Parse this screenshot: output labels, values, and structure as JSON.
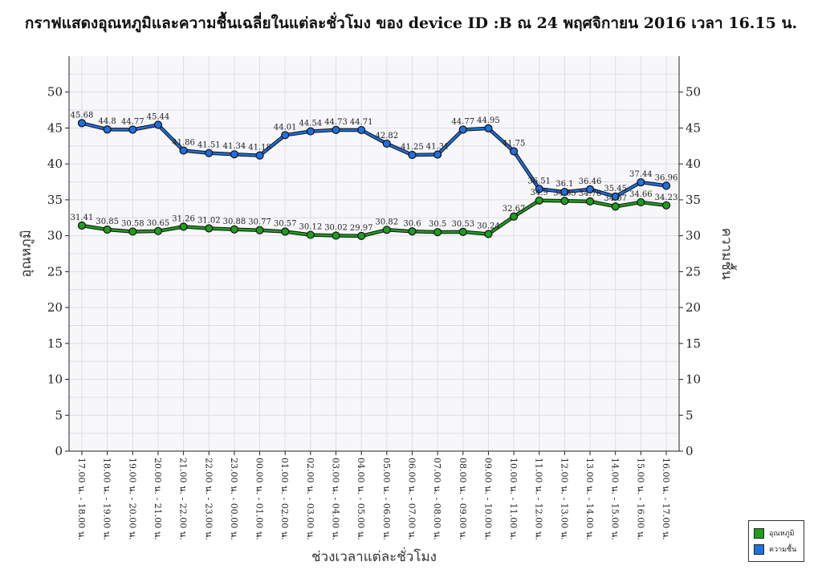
{
  "chart_data": {
    "type": "line",
    "title": "กราฟแสดงอุณหภูมิและความชื้นเฉลี่ยในแต่ละชั่วโมง ของ device ID :B ณ 24 พฤศจิกายน 2016 เวลา 16.15 น.",
    "xlabel": "ช่วงเวลาแต่ละชั่วโมง",
    "ylabel_left": "อุณหภูมิ",
    "ylabel_right": "ความชื้น",
    "ylim": [
      0,
      55
    ],
    "yticks": [
      0,
      5,
      10,
      15,
      20,
      25,
      30,
      35,
      40,
      45,
      50
    ],
    "grid": true,
    "legend_position": "bottom-right",
    "categories": [
      "17.00 น. - 18.00 น.",
      "18.00 น. - 19.00 น.",
      "19.00 น. - 20.00 น.",
      "20.00 น. - 21.00 น.",
      "21.00 น. - 22.00 น.",
      "22.00 น. - 23.00 น.",
      "23.00 น. - 00.00 น.",
      "00.00 น. - 01.00 น.",
      "01.00 น. - 02.00 น.",
      "02.00 น. - 03.00 น.",
      "03.00 น. - 04.00 น.",
      "04.00 น. - 05.00 น.",
      "05.00 น. - 06.00 น.",
      "06.00 น. - 07.00 น.",
      "07.00 น. - 08.00 น.",
      "08.00 น. - 09.00 น.",
      "09.00 น. - 10.00 น.",
      "10.00 น. - 11.00 น.",
      "11.00 น. - 12.00 น.",
      "12.00 น. - 13.00 น.",
      "13.00 น. - 14.00 น.",
      "14.00 น. - 15.00 น.",
      "15.00 น. - 16.00 น.",
      "16.00 น. - 17.00 น."
    ],
    "series": [
      {
        "name": "อุณหภูมิ",
        "color": "#1e9e1e",
        "values": [
          31.41,
          30.85,
          30.58,
          30.65,
          31.26,
          31.02,
          30.88,
          30.77,
          30.57,
          30.12,
          30.02,
          29.97,
          30.82,
          30.6,
          30.5,
          30.53,
          30.24,
          32.67,
          34.9,
          34.85,
          34.78,
          34.07,
          34.66,
          34.23
        ]
      },
      {
        "name": "ความชื้น",
        "color": "#1f6fe0",
        "values": [
          45.68,
          44.8,
          44.77,
          45.44,
          41.86,
          41.51,
          41.34,
          41.18,
          44.01,
          44.54,
          44.73,
          44.71,
          42.82,
          41.25,
          41.31,
          44.77,
          44.95,
          41.75,
          36.51,
          36.1,
          36.46,
          35.45,
          37.44,
          36.96
        ]
      }
    ]
  }
}
